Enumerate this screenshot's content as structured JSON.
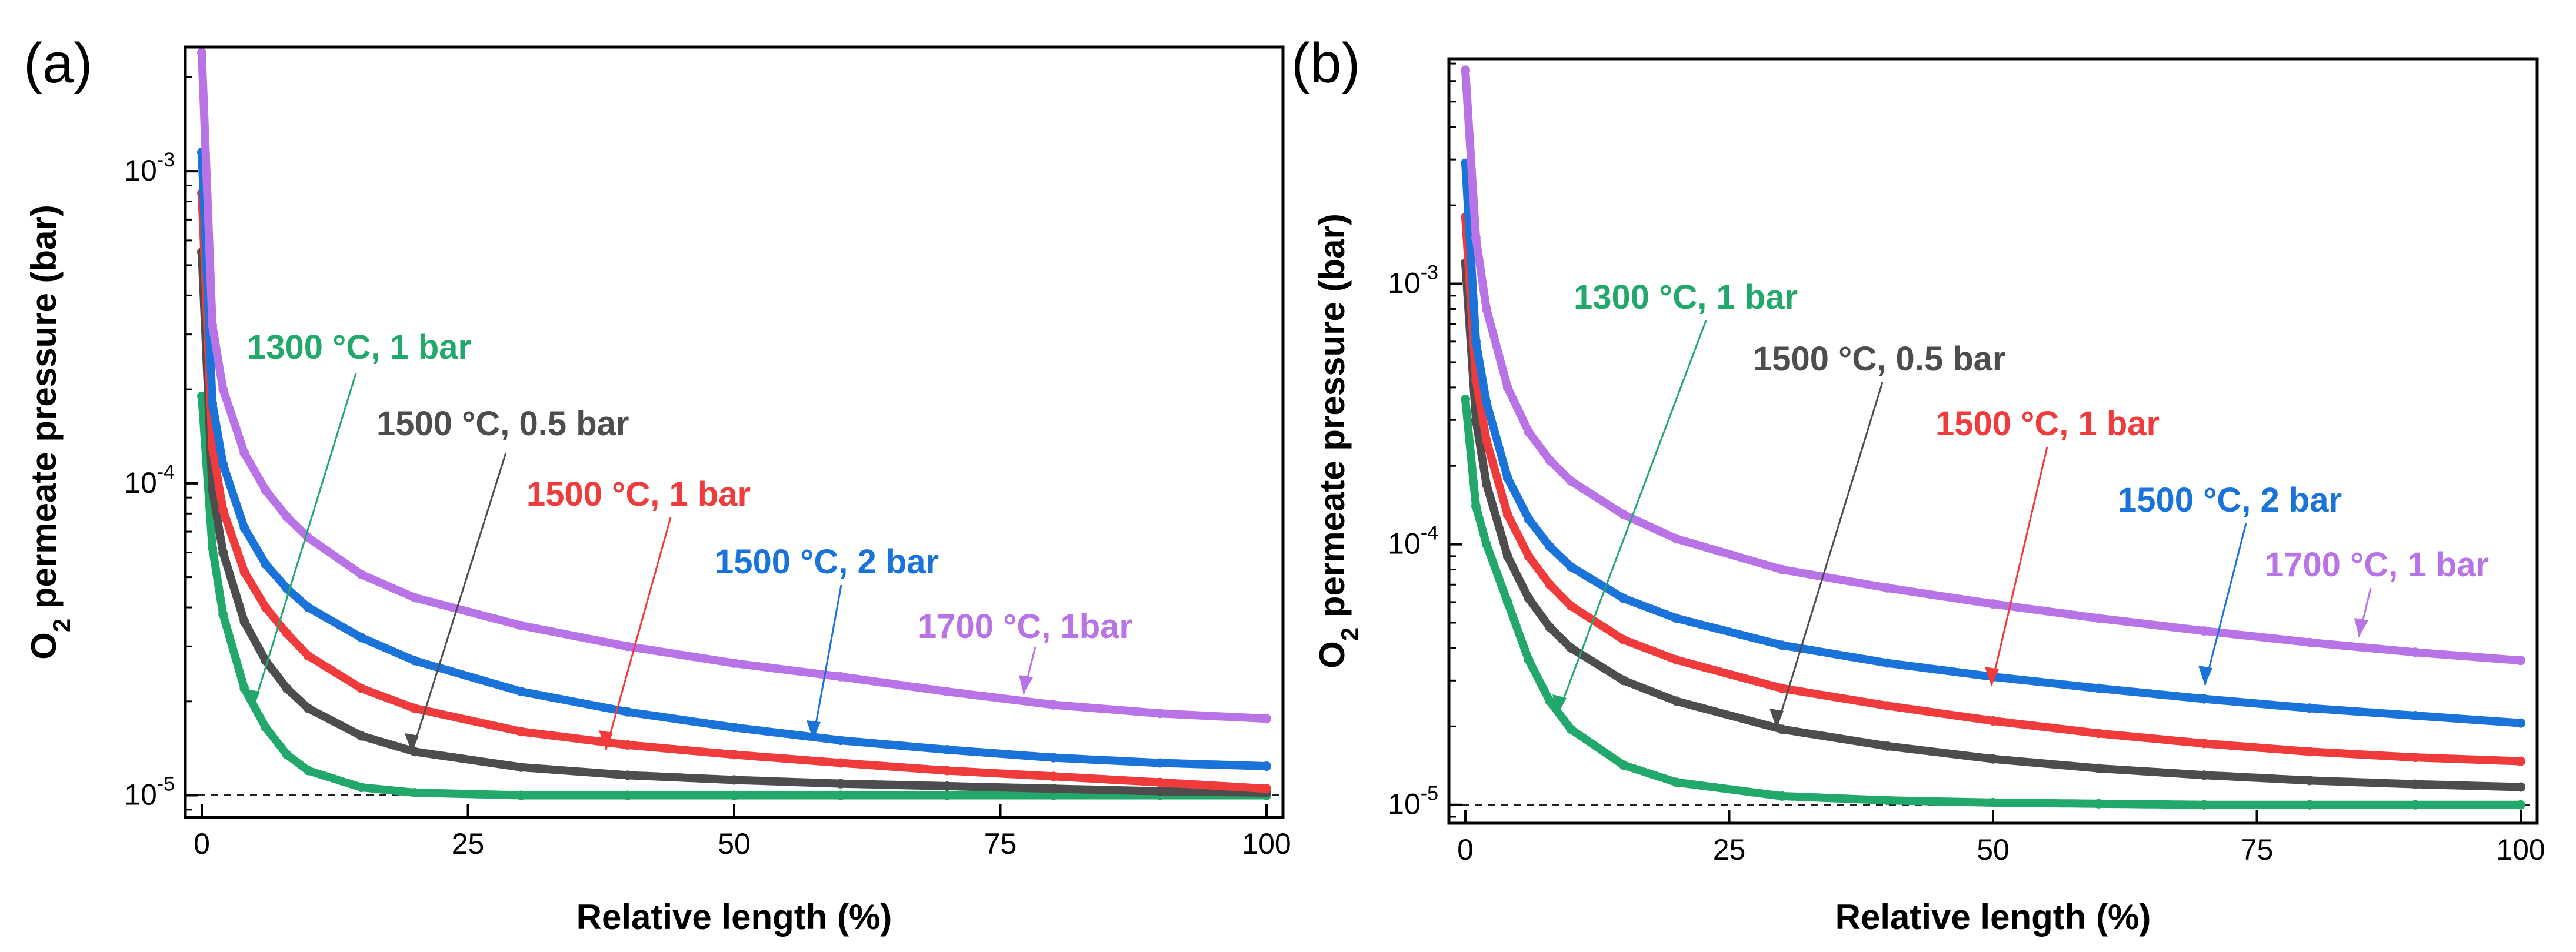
{
  "chart_data": [
    {
      "panel": "(a)",
      "type": "line",
      "xlabel": "Relative length (%)",
      "ylabel_main": "O",
      "ylabel_sub": "2",
      "ylabel_rest": " permeate pressure (bar)",
      "xlim": [
        0,
        100
      ],
      "ylim": [
        8.5e-06,
        0.0025
      ],
      "xticks": [
        0,
        25,
        50,
        75,
        100
      ],
      "xtick_labels": [
        "0",
        "25",
        "50",
        "75",
        "100"
      ],
      "yticks": [
        1e-05,
        0.0001,
        0.001
      ],
      "ytick_exponents": [
        "-5",
        "-4",
        "-3"
      ],
      "ytick_base": "10",
      "reference_line": 1e-05,
      "series": [
        {
          "name": "1300 °C, 1 bar",
          "color": "#22a86a",
          "p0": 0.00019,
          "pinf": 1e-05,
          "x": [
            0,
            1,
            2,
            4,
            6,
            8,
            10,
            15,
            20,
            30,
            40,
            50,
            60,
            70,
            80,
            90,
            100
          ],
          "values": [
            0.00019,
            6.2e-05,
            3.8e-05,
            2.2e-05,
            1.65e-05,
            1.35e-05,
            1.2e-05,
            1.06e-05,
            1.02e-05,
            1e-05,
            1e-05,
            1e-05,
            1e-05,
            1e-05,
            1e-05,
            1e-05,
            1e-05
          ]
        },
        {
          "name": "1500 °C, 0.5 bar",
          "color": "#4d4d4d",
          "p0": 0.00055,
          "pinf": 1e-05,
          "x": [
            0,
            1,
            2,
            4,
            6,
            8,
            10,
            15,
            20,
            30,
            40,
            50,
            60,
            70,
            80,
            90,
            100
          ],
          "values": [
            0.00055,
            9.5e-05,
            6e-05,
            3.6e-05,
            2.7e-05,
            2.2e-05,
            1.9e-05,
            1.55e-05,
            1.38e-05,
            1.23e-05,
            1.16e-05,
            1.12e-05,
            1.09e-05,
            1.07e-05,
            1.05e-05,
            1.03e-05,
            1.02e-05
          ]
        },
        {
          "name": "1500 °C, 1 bar",
          "color": "#ef3b3b",
          "p0": 0.00085,
          "pinf": 1e-05,
          "x": [
            0,
            1,
            2,
            4,
            6,
            8,
            10,
            15,
            20,
            30,
            40,
            50,
            60,
            70,
            80,
            90,
            100
          ],
          "values": [
            0.00085,
            0.00013,
            8.2e-05,
            5.2e-05,
            4e-05,
            3.3e-05,
            2.8e-05,
            2.2e-05,
            1.9e-05,
            1.6e-05,
            1.45e-05,
            1.35e-05,
            1.27e-05,
            1.2e-05,
            1.15e-05,
            1.1e-05,
            1.05e-05
          ]
        },
        {
          "name": "1500 °C, 2 bar",
          "color": "#1a73d9",
          "p0": 0.00115,
          "pinf": 1e-05,
          "x": [
            0,
            1,
            2,
            4,
            6,
            8,
            10,
            15,
            20,
            30,
            40,
            50,
            60,
            70,
            80,
            90,
            100
          ],
          "values": [
            0.00115,
            0.00018,
            0.000115,
            7.2e-05,
            5.5e-05,
            4.6e-05,
            4e-05,
            3.2e-05,
            2.7e-05,
            2.15e-05,
            1.85e-05,
            1.65e-05,
            1.5e-05,
            1.4e-05,
            1.32e-05,
            1.27e-05,
            1.24e-05
          ]
        },
        {
          "name": "1700 °C, 1bar",
          "color": "#b873e6",
          "p0": 0.0024,
          "pinf": 1e-05,
          "x": [
            0,
            1,
            2,
            4,
            6,
            8,
            10,
            15,
            20,
            30,
            40,
            50,
            60,
            70,
            80,
            90,
            100
          ],
          "values": [
            0.0024,
            0.00032,
            0.0002,
            0.000125,
            9.5e-05,
            7.8e-05,
            6.7e-05,
            5.1e-05,
            4.3e-05,
            3.5e-05,
            3e-05,
            2.65e-05,
            2.4e-05,
            2.15e-05,
            1.95e-05,
            1.83e-05,
            1.76e-05
          ]
        }
      ]
    },
    {
      "panel": "(b)",
      "type": "line",
      "xlabel": "Relative length (%)",
      "ylabel_main": "O",
      "ylabel_sub": "2",
      "ylabel_rest": " permeate pressure (bar)",
      "xlim": [
        0,
        100
      ],
      "ylim": [
        8.5e-06,
        0.0073
      ],
      "xticks": [
        0,
        25,
        50,
        75,
        100
      ],
      "xtick_labels": [
        "0",
        "25",
        "50",
        "75",
        "100"
      ],
      "yticks": [
        1e-05,
        0.0001,
        0.001
      ],
      "ytick_exponents": [
        "-5",
        "-4",
        "-3"
      ],
      "ytick_base": "10",
      "reference_line": 1e-05,
      "series": [
        {
          "name": "1300 °C, 1 bar",
          "color": "#22a86a",
          "p0": 0.00036,
          "pinf": 1e-05,
          "x": [
            0,
            1,
            2,
            4,
            6,
            8,
            10,
            15,
            20,
            30,
            40,
            50,
            60,
            70,
            80,
            90,
            100
          ],
          "values": [
            0.00036,
            0.00014,
            0.0001,
            6e-05,
            3.6e-05,
            2.5e-05,
            1.95e-05,
            1.42e-05,
            1.22e-05,
            1.08e-05,
            1.04e-05,
            1.02e-05,
            1.01e-05,
            1e-05,
            1e-05,
            1e-05,
            1e-05
          ]
        },
        {
          "name": "1500 °C, 0.5 bar",
          "color": "#4d4d4d",
          "p0": 0.0012,
          "pinf": 1e-05,
          "x": [
            0,
            1,
            2,
            4,
            6,
            8,
            10,
            15,
            20,
            30,
            40,
            50,
            60,
            70,
            80,
            90,
            100
          ],
          "values": [
            0.0012,
            0.0003,
            0.00017,
            9e-05,
            6.2e-05,
            4.8e-05,
            4e-05,
            3e-05,
            2.5e-05,
            1.95e-05,
            1.68e-05,
            1.5e-05,
            1.38e-05,
            1.3e-05,
            1.24e-05,
            1.2e-05,
            1.17e-05
          ]
        },
        {
          "name": "1500 °C, 1 bar",
          "color": "#ef3b3b",
          "p0": 0.0018,
          "pinf": 1e-05,
          "x": [
            0,
            1,
            2,
            4,
            6,
            8,
            10,
            15,
            20,
            30,
            40,
            50,
            60,
            70,
            80,
            90,
            100
          ],
          "values": [
            0.0018,
            0.00043,
            0.00025,
            0.00013,
            9e-05,
            7e-05,
            5.8e-05,
            4.3e-05,
            3.6e-05,
            2.8e-05,
            2.4e-05,
            2.1e-05,
            1.88e-05,
            1.72e-05,
            1.6e-05,
            1.52e-05,
            1.47e-05
          ]
        },
        {
          "name": "1500 °C, 2 bar",
          "color": "#1a73d9",
          "p0": 0.0029,
          "pinf": 1e-05,
          "x": [
            0,
            1,
            2,
            4,
            6,
            8,
            10,
            15,
            20,
            30,
            40,
            50,
            60,
            70,
            80,
            90,
            100
          ],
          "values": [
            0.0029,
            0.0006,
            0.00035,
            0.00018,
            0.000125,
            9.8e-05,
            8.2e-05,
            6.2e-05,
            5.2e-05,
            4.1e-05,
            3.5e-05,
            3.1e-05,
            2.8e-05,
            2.55e-05,
            2.35e-05,
            2.2e-05,
            2.06e-05
          ]
        },
        {
          "name": "1700 °C, 1 bar",
          "color": "#b873e6",
          "p0": 0.0066,
          "pinf": 1e-05,
          "x": [
            0,
            1,
            2,
            4,
            6,
            8,
            10,
            15,
            20,
            30,
            40,
            50,
            60,
            70,
            80,
            90,
            100
          ],
          "values": [
            0.0066,
            0.0015,
            0.0008,
            0.0004,
            0.00027,
            0.00021,
            0.000175,
            0.00013,
            0.000105,
            8e-05,
            6.8e-05,
            5.9e-05,
            5.2e-05,
            4.65e-05,
            4.2e-05,
            3.85e-05,
            3.58e-05
          ]
        }
      ]
    }
  ]
}
